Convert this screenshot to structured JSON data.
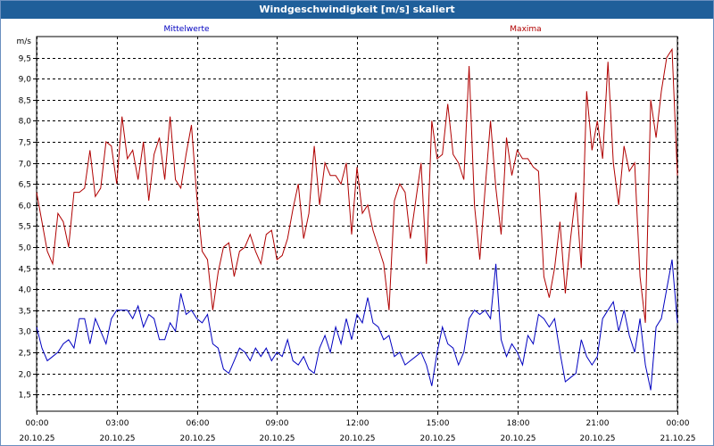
{
  "window": {
    "title": "Windgeschwindigkeit [m/s] skaliert"
  },
  "colors": {
    "title_bg": "#1f5f9a",
    "mean": "#0000c0",
    "max": "#b00000",
    "grid": "#000000"
  },
  "chart_data": {
    "type": "line",
    "title": "Windgeschwindigkeit [m/s] skaliert",
    "ylabel": "m/s",
    "xlabel": "",
    "ylim": [
      1.1,
      10.0
    ],
    "yticks": [
      1.5,
      2.0,
      2.5,
      3.0,
      3.5,
      4.0,
      4.5,
      5.0,
      5.5,
      6.0,
      6.5,
      7.0,
      7.5,
      8.0,
      8.5,
      9.0,
      9.5
    ],
    "ytick_labels": [
      "1,5",
      "2,0",
      "2,5",
      "3,0",
      "3,5",
      "4,0",
      "4,5",
      "5,0",
      "5,5",
      "6,0",
      "6,5",
      "7,0",
      "7,5",
      "8,0",
      "8,5",
      "9,0",
      "9,5"
    ],
    "xlim_hours": [
      0,
      24
    ],
    "xticks": [
      {
        "h": 0,
        "time": "00:00",
        "date": "20.10.25"
      },
      {
        "h": 3,
        "time": "03:00",
        "date": "20.10.25"
      },
      {
        "h": 6,
        "time": "06:00",
        "date": "20.10.25"
      },
      {
        "h": 9,
        "time": "09:00",
        "date": "20.10.25"
      },
      {
        "h": 12,
        "time": "12:00",
        "date": "20.10.25"
      },
      {
        "h": 15,
        "time": "15:00",
        "date": "20.10.25"
      },
      {
        "h": 18,
        "time": "18:00",
        "date": "20.10.25"
      },
      {
        "h": 21,
        "time": "21:00",
        "date": "20.10.25"
      },
      {
        "h": 24,
        "time": "00:00",
        "date": "21.10.25"
      }
    ],
    "grid": true,
    "legend_position": "top",
    "series": [
      {
        "name": "Mittelwerte",
        "color": "#0000c0",
        "x": [
          0.0,
          0.2,
          0.4,
          0.6,
          0.8,
          1.0,
          1.2,
          1.4,
          1.6,
          1.8,
          2.0,
          2.2,
          2.4,
          2.6,
          2.8,
          3.0,
          3.2,
          3.4,
          3.6,
          3.8,
          4.0,
          4.2,
          4.4,
          4.6,
          4.8,
          5.0,
          5.2,
          5.4,
          5.6,
          5.8,
          6.0,
          6.2,
          6.4,
          6.6,
          6.8,
          7.0,
          7.2,
          7.4,
          7.6,
          7.8,
          8.0,
          8.2,
          8.4,
          8.6,
          8.8,
          9.0,
          9.2,
          9.4,
          9.6,
          9.8,
          10.0,
          10.2,
          10.4,
          10.6,
          10.8,
          11.0,
          11.2,
          11.4,
          11.6,
          11.8,
          12.0,
          12.2,
          12.4,
          12.6,
          12.8,
          13.0,
          13.2,
          13.4,
          13.6,
          13.8,
          14.0,
          14.2,
          14.4,
          14.6,
          14.8,
          15.0,
          15.2,
          15.4,
          15.6,
          15.8,
          16.0,
          16.2,
          16.4,
          16.6,
          16.8,
          17.0,
          17.2,
          17.4,
          17.6,
          17.8,
          18.0,
          18.2,
          18.4,
          18.6,
          18.8,
          19.0,
          19.2,
          19.4,
          19.6,
          19.8,
          20.0,
          20.2,
          20.4,
          20.6,
          20.8,
          21.0,
          21.2,
          21.4,
          21.6,
          21.8,
          22.0,
          22.2,
          22.4,
          22.6,
          22.8,
          23.0,
          23.2,
          23.4,
          23.6,
          23.8,
          24.0
        ],
        "values": [
          3.1,
          2.6,
          2.3,
          2.4,
          2.5,
          2.7,
          2.8,
          2.6,
          3.3,
          3.3,
          2.7,
          3.3,
          3.0,
          2.7,
          3.3,
          3.5,
          3.5,
          3.5,
          3.3,
          3.6,
          3.1,
          3.4,
          3.3,
          2.8,
          2.8,
          3.2,
          3.0,
          3.9,
          3.4,
          3.5,
          3.3,
          3.2,
          3.4,
          2.7,
          2.6,
          2.1,
          2.0,
          2.3,
          2.6,
          2.5,
          2.3,
          2.6,
          2.4,
          2.6,
          2.3,
          2.5,
          2.4,
          2.8,
          2.3,
          2.2,
          2.4,
          2.1,
          2.0,
          2.6,
          2.9,
          2.5,
          3.1,
          2.7,
          3.3,
          2.8,
          3.4,
          3.2,
          3.8,
          3.2,
          3.1,
          2.8,
          2.9,
          2.4,
          2.5,
          2.2,
          2.3,
          2.4,
          2.5,
          2.2,
          1.7,
          2.5,
          3.1,
          2.7,
          2.6,
          2.2,
          2.5,
          3.3,
          3.5,
          3.4,
          3.5,
          3.3,
          4.6,
          2.8,
          2.4,
          2.7,
          2.5,
          2.2,
          2.9,
          2.7,
          3.4,
          3.3,
          3.1,
          3.3,
          2.5,
          1.8,
          1.9,
          2.0,
          2.8,
          2.4,
          2.2,
          2.4,
          3.3,
          3.5,
          3.7,
          3.0,
          3.5,
          2.9,
          2.5,
          3.3,
          2.2,
          1.6,
          3.1,
          3.3,
          4.0,
          4.7,
          3.2
        ],
        "note": "series values are approximate, read from the plot"
      },
      {
        "name": "Maxima",
        "color": "#b00000",
        "x": [
          0.0,
          0.2,
          0.4,
          0.6,
          0.8,
          1.0,
          1.2,
          1.4,
          1.6,
          1.8,
          2.0,
          2.2,
          2.4,
          2.6,
          2.8,
          3.0,
          3.2,
          3.4,
          3.6,
          3.8,
          4.0,
          4.2,
          4.4,
          4.6,
          4.8,
          5.0,
          5.2,
          5.4,
          5.6,
          5.8,
          6.0,
          6.2,
          6.4,
          6.6,
          6.8,
          7.0,
          7.2,
          7.4,
          7.6,
          7.8,
          8.0,
          8.2,
          8.4,
          8.6,
          8.8,
          9.0,
          9.2,
          9.4,
          9.6,
          9.8,
          10.0,
          10.2,
          10.4,
          10.6,
          10.8,
          11.0,
          11.2,
          11.4,
          11.6,
          11.8,
          12.0,
          12.2,
          12.4,
          12.6,
          12.8,
          13.0,
          13.2,
          13.4,
          13.6,
          13.8,
          14.0,
          14.2,
          14.4,
          14.6,
          14.8,
          15.0,
          15.2,
          15.4,
          15.6,
          15.8,
          16.0,
          16.2,
          16.4,
          16.6,
          16.8,
          17.0,
          17.2,
          17.4,
          17.6,
          17.8,
          18.0,
          18.2,
          18.4,
          18.6,
          18.8,
          19.0,
          19.2,
          19.4,
          19.6,
          19.8,
          20.0,
          20.2,
          20.4,
          20.6,
          20.8,
          21.0,
          21.2,
          21.4,
          21.6,
          21.8,
          22.0,
          22.2,
          22.4,
          22.6,
          22.8,
          23.0,
          23.2,
          23.4,
          23.6,
          23.8,
          24.0
        ],
        "values": [
          6.3,
          5.6,
          4.9,
          4.6,
          5.8,
          5.6,
          5.0,
          6.3,
          6.3,
          6.4,
          7.3,
          6.2,
          6.4,
          7.5,
          7.4,
          6.5,
          8.1,
          7.1,
          7.3,
          6.6,
          7.5,
          6.1,
          7.2,
          7.6,
          6.6,
          8.1,
          6.6,
          6.4,
          7.2,
          7.9,
          6.2,
          4.9,
          4.7,
          3.5,
          4.4,
          5.0,
          5.1,
          4.3,
          4.9,
          5.0,
          5.3,
          4.9,
          4.6,
          5.3,
          5.4,
          4.7,
          4.8,
          5.2,
          5.9,
          6.5,
          5.2,
          5.8,
          7.4,
          6.0,
          7.0,
          6.7,
          6.7,
          6.5,
          7.0,
          5.3,
          6.9,
          5.8,
          6.0,
          5.4,
          5.0,
          4.6,
          3.5,
          6.1,
          6.5,
          6.3,
          5.2,
          6.1,
          7.0,
          4.6,
          8.0,
          7.1,
          7.2,
          8.4,
          7.2,
          7.0,
          6.6,
          9.3,
          6.0,
          4.7,
          6.4,
          8.0,
          6.4,
          5.3,
          7.6,
          6.7,
          7.3,
          7.1,
          7.1,
          6.9,
          6.8,
          4.3,
          3.8,
          4.5,
          5.6,
          3.9,
          5.2,
          6.3,
          4.5,
          8.7,
          7.3,
          8.0,
          7.1,
          9.4,
          7.0,
          6.0,
          7.4,
          6.8,
          7.0,
          4.3,
          3.2,
          8.5,
          7.6,
          8.7,
          9.5,
          9.7,
          6.7
        ],
        "note": "series values are approximate, read from the plot"
      }
    ]
  }
}
